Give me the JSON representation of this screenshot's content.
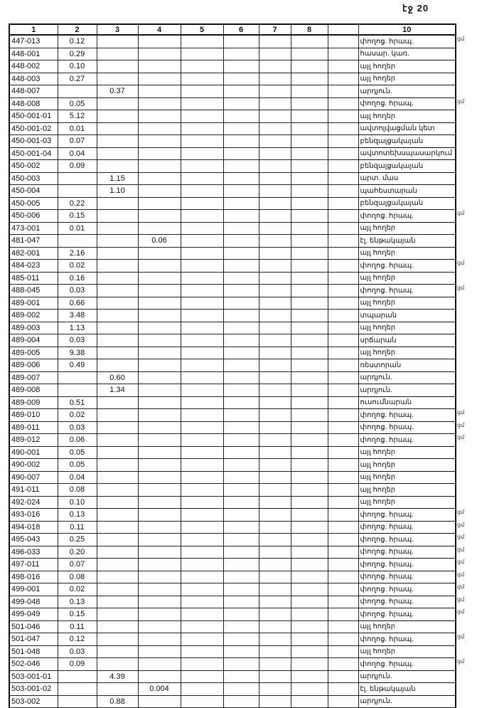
{
  "page": {
    "number_label": "էջ 20"
  },
  "table": {
    "headers": [
      "1",
      "2",
      "3",
      "4",
      "5",
      "6",
      "7",
      "8",
      "",
      "10"
    ],
    "rows": [
      [
        "447-013",
        "0.12",
        "",
        "",
        "փողոց. հրապ.",
        "ցմ"
      ],
      [
        "448-001",
        "0.29",
        "",
        "",
        "հասար. կառ.",
        ""
      ],
      [
        "448-002",
        "0.10",
        "",
        "",
        "այլ հողեր",
        ""
      ],
      [
        "448-003",
        "0.27",
        "",
        "",
        "այլ հողեր",
        ""
      ],
      [
        "448-007",
        "",
        "0.37",
        "",
        "արդյուն.",
        ""
      ],
      [
        "448-008",
        "0.05",
        "",
        "",
        "փողոց. հրապ.",
        "ցմ"
      ],
      [
        "450-001-01",
        "5.12",
        "",
        "",
        "այլ հողեր",
        ""
      ],
      [
        "450-001-02",
        "0.01",
        "",
        "",
        "ավտոլվացման կետ",
        ""
      ],
      [
        "450-001-03",
        "0.07",
        "",
        "",
        "բենզալցակայան",
        ""
      ],
      [
        "450-001-04",
        "0.04",
        "",
        "",
        "ավտոտեխսպասարկում",
        ""
      ],
      [
        "450-002",
        "0.09",
        "",
        "",
        "բենզալցակայան",
        ""
      ],
      [
        "450-003",
        "",
        "1.15",
        "",
        "արտ. մաս",
        ""
      ],
      [
        "450-004",
        "",
        "1.10",
        "",
        "պահեստարան",
        ""
      ],
      [
        "450-005",
        "0.22",
        "",
        "",
        "բենզալցակայան",
        ""
      ],
      [
        "450-006",
        "0.15",
        "",
        "",
        "փողոց. հրապ.",
        "ցմ"
      ],
      [
        "473-001",
        "0.01",
        "",
        "",
        "այլ հողեր",
        ""
      ],
      [
        "481-047",
        "",
        "",
        "0.06",
        "էլ. ենթակայան",
        ""
      ],
      [
        "482-001",
        "2.16",
        "",
        "",
        "այլ հողեր",
        ""
      ],
      [
        "484-023",
        "0.02",
        "",
        "",
        "փողոց. հրապ.",
        "ցմ"
      ],
      [
        "485-011",
        "0.16",
        "",
        "",
        "այլ հողեր",
        ""
      ],
      [
        "488-045",
        "0.03",
        "",
        "",
        "փողոց. հրապ.",
        "ցմ"
      ],
      [
        "489-001",
        "0.66",
        "",
        "",
        "այլ հողեր",
        ""
      ],
      [
        "489-002",
        "3.48",
        "",
        "",
        "տպարան",
        ""
      ],
      [
        "489-003",
        "1.13",
        "",
        "",
        "այլ հողեր",
        ""
      ],
      [
        "489-004",
        "0.03",
        "",
        "",
        "սրճարան",
        ""
      ],
      [
        "489-005",
        "9.38",
        "",
        "",
        "այլ հողեր",
        ""
      ],
      [
        "489-006",
        "0.49",
        "",
        "",
        "ռեստորան",
        ""
      ],
      [
        "489-007",
        "",
        "0.60",
        "",
        "արդյուն.",
        ""
      ],
      [
        "489-008",
        "",
        "1.34",
        "",
        "արդյուն.",
        ""
      ],
      [
        "489-009",
        "0.51",
        "",
        "",
        "ուսումնարան",
        ""
      ],
      [
        "489-010",
        "0.02",
        "",
        "",
        "փողոց. հրապ.",
        "ցմ"
      ],
      [
        "489-011",
        "0.03",
        "",
        "",
        "փողոց. հրապ.",
        "ցմ"
      ],
      [
        "489-012",
        "0.06",
        "",
        "",
        "փողոց. հրապ.",
        "ցմ"
      ],
      [
        "490-001",
        "0.05",
        "",
        "",
        "այլ հողեր",
        ""
      ],
      [
        "490-002",
        "0.05",
        "",
        "",
        "այլ հողեր",
        ""
      ],
      [
        "490-007",
        "0.04",
        "",
        "",
        "այլ հողեր",
        ""
      ],
      [
        "491-011",
        "0.08",
        "",
        "",
        "այլ հողեր",
        ""
      ],
      [
        "492-024",
        "0.10",
        "",
        "",
        "այլ հողեր",
        ""
      ],
      [
        "493-016",
        "0.13",
        "",
        "",
        "փողոց. հրապ.",
        "ցմ"
      ],
      [
        "494-018",
        "0.11",
        "",
        "",
        "փողոց. հրապ.",
        "ցմ"
      ],
      [
        "495-043",
        "0.25",
        "",
        "",
        "փողոց. հրապ.",
        "ցմ"
      ],
      [
        "496-033",
        "0.20",
        "",
        "",
        "փողոց. հրապ.",
        "ցմ"
      ],
      [
        "497-011",
        "0.07",
        "",
        "",
        "փողոց. հրապ.",
        "ցմ"
      ],
      [
        "498-016",
        "0.08",
        "",
        "",
        "փողոց. հրապ.",
        "ցմ"
      ],
      [
        "499-001",
        "0.02",
        "",
        "",
        "փողոց. հրապ.",
        "ցմ"
      ],
      [
        "499-048",
        "0.13",
        "",
        "",
        "փողոց. հրապ.",
        "ցմ"
      ],
      [
        "499-049",
        "0.15",
        "",
        "",
        "փողոց. հրապ.",
        "ցմ"
      ],
      [
        "501-046",
        "0.11",
        "",
        "",
        "այլ հողեր",
        ""
      ],
      [
        "501-047",
        "0.12",
        "",
        "",
        "փողոց. հրապ.",
        "ցմ"
      ],
      [
        "501-048",
        "0.03",
        "",
        "",
        "այլ հողեր",
        ""
      ],
      [
        "502-046",
        "0.09",
        "",
        "",
        "փողոց. հրապ.",
        "ցմ"
      ],
      [
        "503-001-01",
        "",
        "4.39",
        "",
        "արդյուն.",
        ""
      ],
      [
        "503-001-02",
        "",
        "",
        "0.004",
        "էլ. ենթակայան",
        ""
      ],
      [
        "503-002",
        "",
        "0.88",
        "",
        "արդյուն.",
        ""
      ]
    ]
  }
}
